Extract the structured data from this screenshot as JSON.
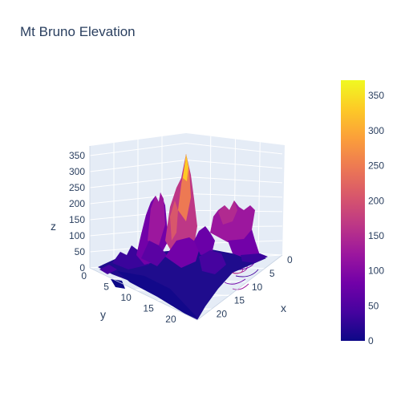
{
  "chart_data": {
    "type": "surface",
    "title": "Mt Bruno Elevation",
    "x": {
      "label": "x",
      "ticks": [
        0,
        5,
        10,
        15,
        20
      ],
      "range": [
        0,
        24
      ]
    },
    "y": {
      "label": "y",
      "ticks": [
        0,
        5,
        10,
        15,
        20
      ],
      "range": [
        0,
        24
      ]
    },
    "z": {
      "label": "z",
      "ticks": [
        0,
        50,
        100,
        150,
        200,
        250,
        300,
        350
      ],
      "range": [
        0,
        380
      ]
    },
    "colorbar": {
      "ticks": [
        0,
        50,
        100,
        150,
        200,
        250,
        300,
        350
      ],
      "range": [
        0,
        372
      ]
    },
    "colorscale": [
      "#0d0887",
      "#46039f",
      "#7201a8",
      "#9c179e",
      "#bd3786",
      "#d8576b",
      "#ed7953",
      "#fb9f3a",
      "#fdca26",
      "#f0f921"
    ],
    "contours_on_floor": true
  }
}
